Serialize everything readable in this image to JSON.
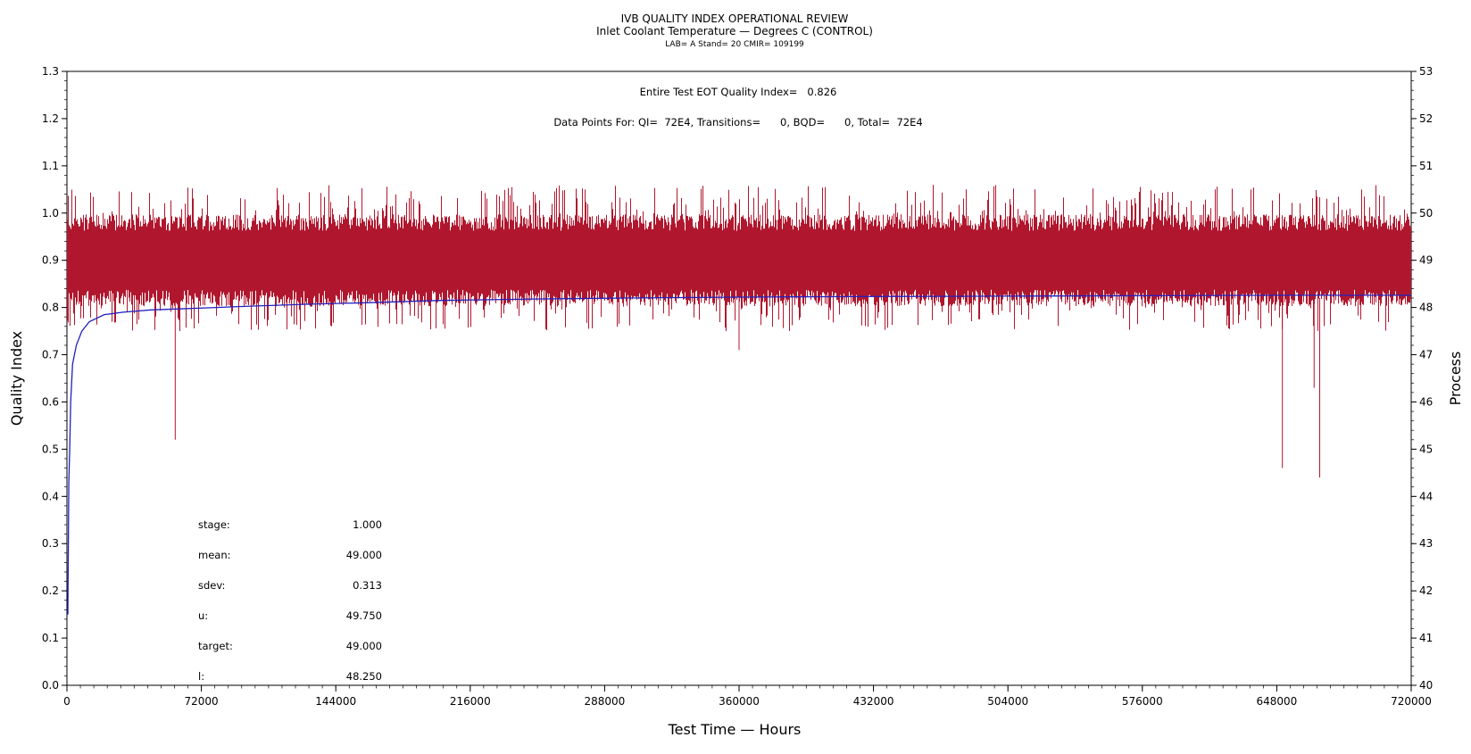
{
  "chart_data": {
    "type": "line",
    "title": "IVB QUALITY INDEX OPERATIONAL REVIEW",
    "subtitle": "Inlet Coolant Temperature — Degrees C (CONTROL)",
    "subtitle2": "LAB= A Stand= 20 CMIR= 109199",
    "xlabel": "Test Time — Hours",
    "ylabel": "Quality Index",
    "y2label": "Process",
    "xlim": [
      0,
      720000
    ],
    "ylim": [
      0.0,
      1.3
    ],
    "y2lim": [
      40,
      53
    ],
    "xticks": [
      "0",
      "72000",
      "144000",
      "216000",
      "288000",
      "360000",
      "432000",
      "504000",
      "576000",
      "648000",
      "720000"
    ],
    "yticks": [
      "0.0",
      "0.1",
      "0.2",
      "0.3",
      "0.4",
      "0.5",
      "0.6",
      "0.7",
      "0.8",
      "0.9",
      "1.0",
      "1.1",
      "1.2",
      "1.3"
    ],
    "y2ticks": [
      "40",
      "41",
      "42",
      "43",
      "44",
      "45",
      "46",
      "47",
      "48",
      "49",
      "50",
      "51",
      "52",
      "53"
    ],
    "annotations": [
      "Entire Test EOT Quality Index=   0.826",
      "Data Points For: QI=  72E4, Transitions=      0, BQD=      0, Total=  72E4"
    ],
    "stats": [
      {
        "label": "stage:",
        "value": "1.000"
      },
      {
        "label": "mean:",
        "value": "49.000"
      },
      {
        "label": "sdev:",
        "value": "0.313"
      },
      {
        "label": "u:",
        "value": "49.750"
      },
      {
        "label": "target:",
        "value": "49.000"
      },
      {
        "label": "l:",
        "value": "48.250"
      }
    ],
    "series": [
      {
        "axis": "right",
        "color": "#b0172e",
        "x": [
          0,
          720000
        ],
        "y_mean": 49.0,
        "y_band": [
          48.2,
          49.8
        ],
        "y_extremes": [
          50.6,
          47.5
        ],
        "spikes": [
          {
            "x": 58000,
            "y": 45.2
          },
          {
            "x": 360000,
            "y": 47.1
          },
          {
            "x": 651000,
            "y": 44.6
          },
          {
            "x": 668000,
            "y": 46.3
          },
          {
            "x": 671000,
            "y": 44.4
          }
        ]
      },
      {
        "axis": "left",
        "color": "#2020c0",
        "x": [
          500,
          1000,
          1500,
          2000,
          3000,
          5000,
          8000,
          12000,
          20000,
          30000,
          45000,
          60000,
          80000,
          100000,
          130000,
          160000,
          200000,
          250000,
          300000,
          360000,
          420000,
          500000,
          580000,
          650000,
          720000
        ],
        "y": [
          0.15,
          0.43,
          0.5,
          0.6,
          0.68,
          0.72,
          0.75,
          0.77,
          0.785,
          0.79,
          0.795,
          0.797,
          0.8,
          0.803,
          0.807,
          0.81,
          0.815,
          0.818,
          0.82,
          0.822,
          0.823,
          0.824,
          0.825,
          0.826,
          0.826
        ]
      }
    ]
  }
}
